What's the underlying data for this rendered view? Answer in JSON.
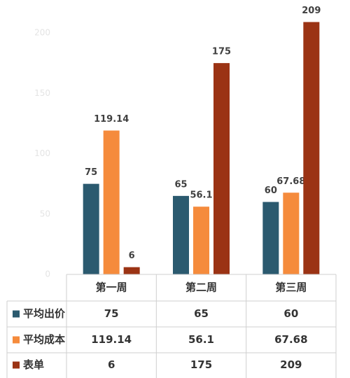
{
  "chart_data": {
    "type": "bar",
    "categories": [
      "第一周",
      "第二周",
      "第三周"
    ],
    "series": [
      {
        "name": "平均出价",
        "color": "#2b5a6f",
        "values": [
          75,
          65,
          60
        ]
      },
      {
        "name": "平均成本",
        "color": "#f58b3c",
        "values": [
          119.14,
          56.1,
          67.68
        ]
      },
      {
        "name": "表单",
        "color": "#9b3314",
        "values": [
          6,
          175,
          209
        ]
      }
    ],
    "ylim": [
      0,
      200
    ],
    "yticks": [
      0,
      50,
      100,
      150,
      200
    ],
    "grid": false
  }
}
